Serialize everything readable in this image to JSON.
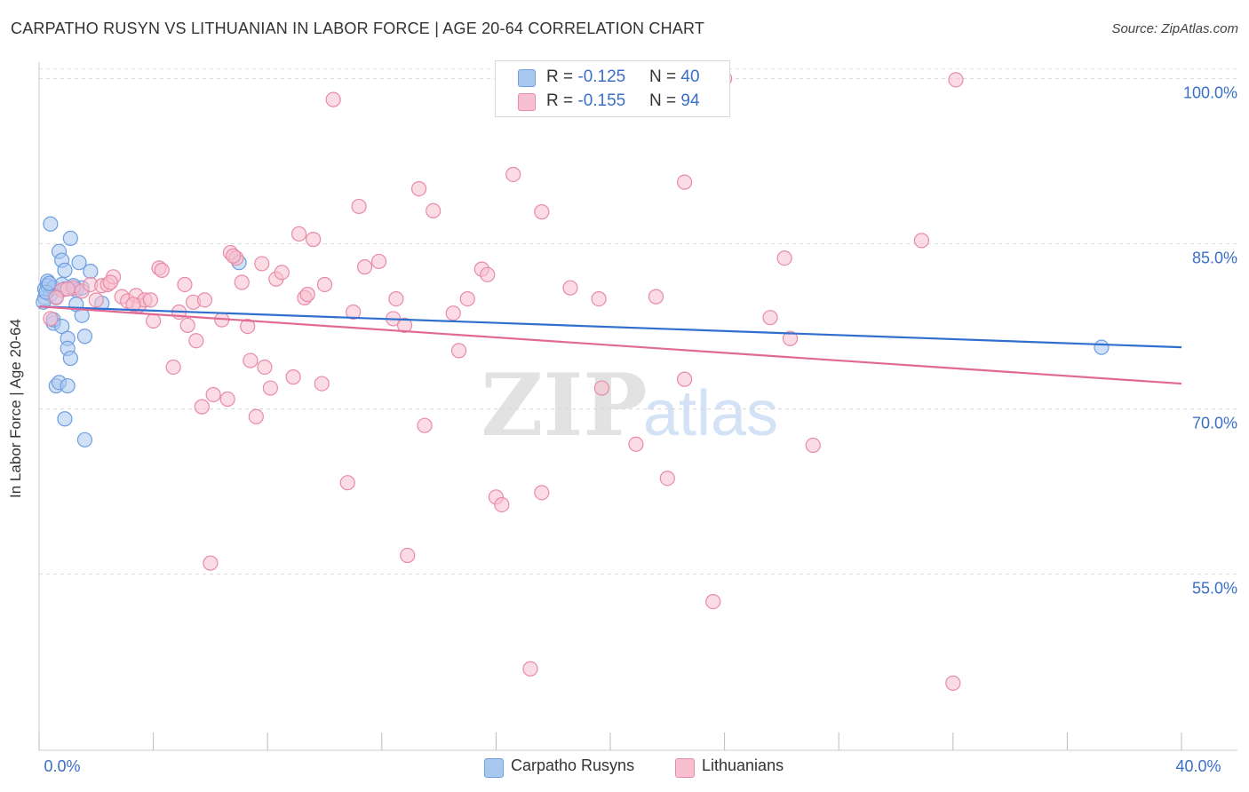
{
  "title": "CARPATHO RUSYN VS LITHUANIAN IN LABOR FORCE | AGE 20-64 CORRELATION CHART",
  "source": "Source: ZipAtlas.com",
  "watermark": {
    "zip": "ZIP",
    "atlas": "atlas"
  },
  "legend": {
    "rows": [
      {
        "r_label": "R = ",
        "r_value": "-0.125",
        "n_label": "N = ",
        "n_value": "40",
        "color": "#a9c8f0",
        "border": "#6f9ee0"
      },
      {
        "r_label": "R = ",
        "r_value": "-0.155",
        "n_label": "N = ",
        "n_value": "94",
        "color": "#f7bfd0",
        "border": "#e98aa8"
      }
    ]
  },
  "chart_data": {
    "type": "scatter",
    "title": "CARPATHO RUSYN VS LITHUANIAN IN LABOR FORCE | AGE 20-64 CORRELATION CHART",
    "xlabel": "",
    "ylabel": "In Labor Force | Age 20-64",
    "xlim": [
      0,
      40
    ],
    "ylim": [
      39,
      101.5
    ],
    "x_tick_labels": [
      {
        "value": 0,
        "label": "0.0%"
      },
      {
        "value": 40,
        "label": "40.0%"
      }
    ],
    "y_tick_labels": [
      {
        "value": 100,
        "label": "100.0%"
      },
      {
        "value": 85,
        "label": "85.0%"
      },
      {
        "value": 70,
        "label": "70.0%"
      },
      {
        "value": 55,
        "label": "55.0%"
      }
    ],
    "grid": true,
    "legend_position": "top-center",
    "series": [
      {
        "name": "Carpatho Rusyns",
        "color": "#6f9ee0",
        "fill": "#a9c8f0",
        "trend_color": "#2f6fd0",
        "trend": {
          "x": [
            0,
            40
          ],
          "y": [
            79.3,
            75.6
          ]
        },
        "points": [
          [
            0.2,
            80.1
          ],
          [
            0.2,
            80.9
          ],
          [
            0.3,
            81.6
          ],
          [
            0.3,
            81.2
          ],
          [
            0.4,
            80.4
          ],
          [
            0.4,
            86.8
          ],
          [
            0.5,
            77.8
          ],
          [
            0.5,
            78.1
          ],
          [
            0.5,
            81.0
          ],
          [
            0.6,
            80.2
          ],
          [
            0.6,
            72.1
          ],
          [
            0.7,
            72.4
          ],
          [
            0.7,
            84.3
          ],
          [
            0.8,
            81.3
          ],
          [
            0.8,
            77.5
          ],
          [
            0.8,
            83.5
          ],
          [
            0.9,
            69.1
          ],
          [
            0.9,
            82.6
          ],
          [
            0.9,
            80.9
          ],
          [
            1.0,
            76.4
          ],
          [
            1.0,
            75.5
          ],
          [
            1.0,
            72.1
          ],
          [
            1.1,
            74.6
          ],
          [
            1.1,
            85.5
          ],
          [
            1.2,
            81.0
          ],
          [
            1.3,
            80.8
          ],
          [
            1.3,
            79.5
          ],
          [
            1.4,
            83.3
          ],
          [
            1.5,
            81.0
          ],
          [
            1.5,
            78.5
          ],
          [
            1.6,
            76.6
          ],
          [
            1.6,
            67.2
          ],
          [
            1.8,
            82.5
          ],
          [
            2.2,
            79.6
          ],
          [
            7.0,
            83.3
          ],
          [
            0.15,
            79.7
          ],
          [
            0.25,
            80.6
          ],
          [
            0.35,
            81.4
          ],
          [
            1.2,
            81.2
          ],
          [
            37.2,
            75.6
          ]
        ]
      },
      {
        "name": "Lithuanians",
        "color": "#e98aa8",
        "fill": "#f7bfd0",
        "trend_color": "#e06a92",
        "trend": {
          "x": [
            0,
            40
          ],
          "y": [
            79.3,
            72.3
          ]
        },
        "points": [
          [
            0.4,
            78.2
          ],
          [
            0.8,
            80.8
          ],
          [
            1.2,
            81.0
          ],
          [
            1.5,
            80.7
          ],
          [
            1.8,
            81.3
          ],
          [
            2.0,
            79.9
          ],
          [
            2.2,
            81.2
          ],
          [
            2.4,
            81.3
          ],
          [
            2.6,
            82.0
          ],
          [
            2.9,
            80.2
          ],
          [
            3.1,
            79.8
          ],
          [
            3.4,
            80.3
          ],
          [
            3.5,
            79.4
          ],
          [
            3.7,
            79.9
          ],
          [
            3.9,
            79.9
          ],
          [
            4.0,
            78.0
          ],
          [
            4.2,
            82.8
          ],
          [
            4.3,
            82.6
          ],
          [
            4.7,
            73.8
          ],
          [
            4.9,
            78.8
          ],
          [
            5.1,
            81.3
          ],
          [
            5.2,
            77.6
          ],
          [
            5.4,
            79.7
          ],
          [
            5.5,
            76.2
          ],
          [
            5.7,
            70.2
          ],
          [
            5.8,
            79.9
          ],
          [
            6.0,
            56.0
          ],
          [
            6.1,
            71.3
          ],
          [
            6.4,
            78.1
          ],
          [
            6.6,
            70.9
          ],
          [
            6.7,
            84.2
          ],
          [
            6.9,
            83.7
          ],
          [
            7.1,
            81.5
          ],
          [
            7.3,
            77.5
          ],
          [
            7.4,
            74.4
          ],
          [
            7.6,
            69.3
          ],
          [
            7.8,
            83.2
          ],
          [
            7.9,
            73.8
          ],
          [
            8.1,
            71.9
          ],
          [
            8.3,
            81.8
          ],
          [
            8.5,
            82.4
          ],
          [
            8.9,
            72.9
          ],
          [
            9.1,
            85.9
          ],
          [
            9.3,
            80.1
          ],
          [
            9.4,
            80.4
          ],
          [
            9.6,
            85.4
          ],
          [
            9.9,
            72.3
          ],
          [
            10.0,
            81.3
          ],
          [
            10.3,
            98.1
          ],
          [
            10.8,
            63.3
          ],
          [
            11.0,
            78.8
          ],
          [
            11.2,
            88.4
          ],
          [
            11.4,
            82.9
          ],
          [
            11.9,
            83.4
          ],
          [
            12.4,
            78.2
          ],
          [
            12.5,
            80.0
          ],
          [
            12.8,
            77.6
          ],
          [
            12.9,
            56.7
          ],
          [
            13.3,
            90.0
          ],
          [
            13.5,
            68.5
          ],
          [
            13.8,
            88.0
          ],
          [
            14.5,
            78.7
          ],
          [
            14.7,
            75.3
          ],
          [
            15.0,
            80.0
          ],
          [
            15.5,
            82.7
          ],
          [
            15.7,
            82.2
          ],
          [
            16.0,
            62.0
          ],
          [
            16.2,
            61.3
          ],
          [
            16.6,
            91.3
          ],
          [
            17.2,
            46.4
          ],
          [
            17.6,
            62.4
          ],
          [
            17.6,
            87.9
          ],
          [
            18.6,
            81.0
          ],
          [
            19.6,
            80.0
          ],
          [
            19.7,
            71.9
          ],
          [
            20.9,
            66.8
          ],
          [
            21.6,
            80.2
          ],
          [
            22.0,
            63.7
          ],
          [
            22.6,
            72.7
          ],
          [
            22.6,
            90.6
          ],
          [
            23.6,
            52.5
          ],
          [
            24.0,
            100.0
          ],
          [
            25.6,
            78.3
          ],
          [
            26.1,
            83.7
          ],
          [
            26.3,
            76.4
          ],
          [
            27.1,
            66.7
          ],
          [
            30.9,
            85.3
          ],
          [
            32.0,
            45.1
          ],
          [
            32.1,
            99.9
          ],
          [
            0.6,
            80.1
          ],
          [
            1.0,
            80.9
          ],
          [
            2.5,
            81.5
          ],
          [
            3.3,
            79.5
          ],
          [
            6.8,
            83.9
          ]
        ]
      }
    ]
  },
  "bottom_legend": [
    {
      "label": "Carpatho Rusyns",
      "color": "#a9c8f0",
      "border": "#6f9ee0"
    },
    {
      "label": "Lithuanians",
      "color": "#f7bfd0",
      "border": "#e98aa8"
    }
  ]
}
